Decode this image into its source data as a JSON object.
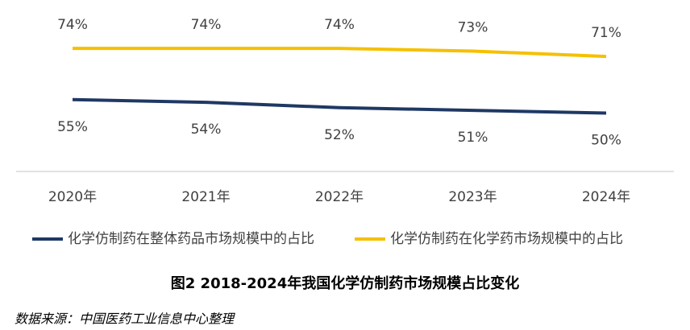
{
  "chart_data": {
    "type": "line",
    "title": "图2 2018-2024年我国化学仿制药市场规模占比变化",
    "source": "数据来源：中国医药工业信息中心整理",
    "categories": [
      "2020年",
      "2021年",
      "2022年",
      "2023年",
      "2024年"
    ],
    "series": [
      {
        "name": "化学仿制药在整体药品市场规模中的占比",
        "color": "#1f3864",
        "values": [
          55,
          54,
          52,
          51,
          50
        ],
        "value_labels": [
          "55%",
          "54%",
          "52%",
          "51%",
          "50%"
        ]
      },
      {
        "name": "化学仿制药在化学药市场规模中的占比",
        "color": "#f5c000",
        "values": [
          74,
          74,
          74,
          73,
          71
        ],
        "value_labels": [
          "74%",
          "74%",
          "74%",
          "73%",
          "71%"
        ]
      }
    ],
    "legend": "bottom"
  }
}
